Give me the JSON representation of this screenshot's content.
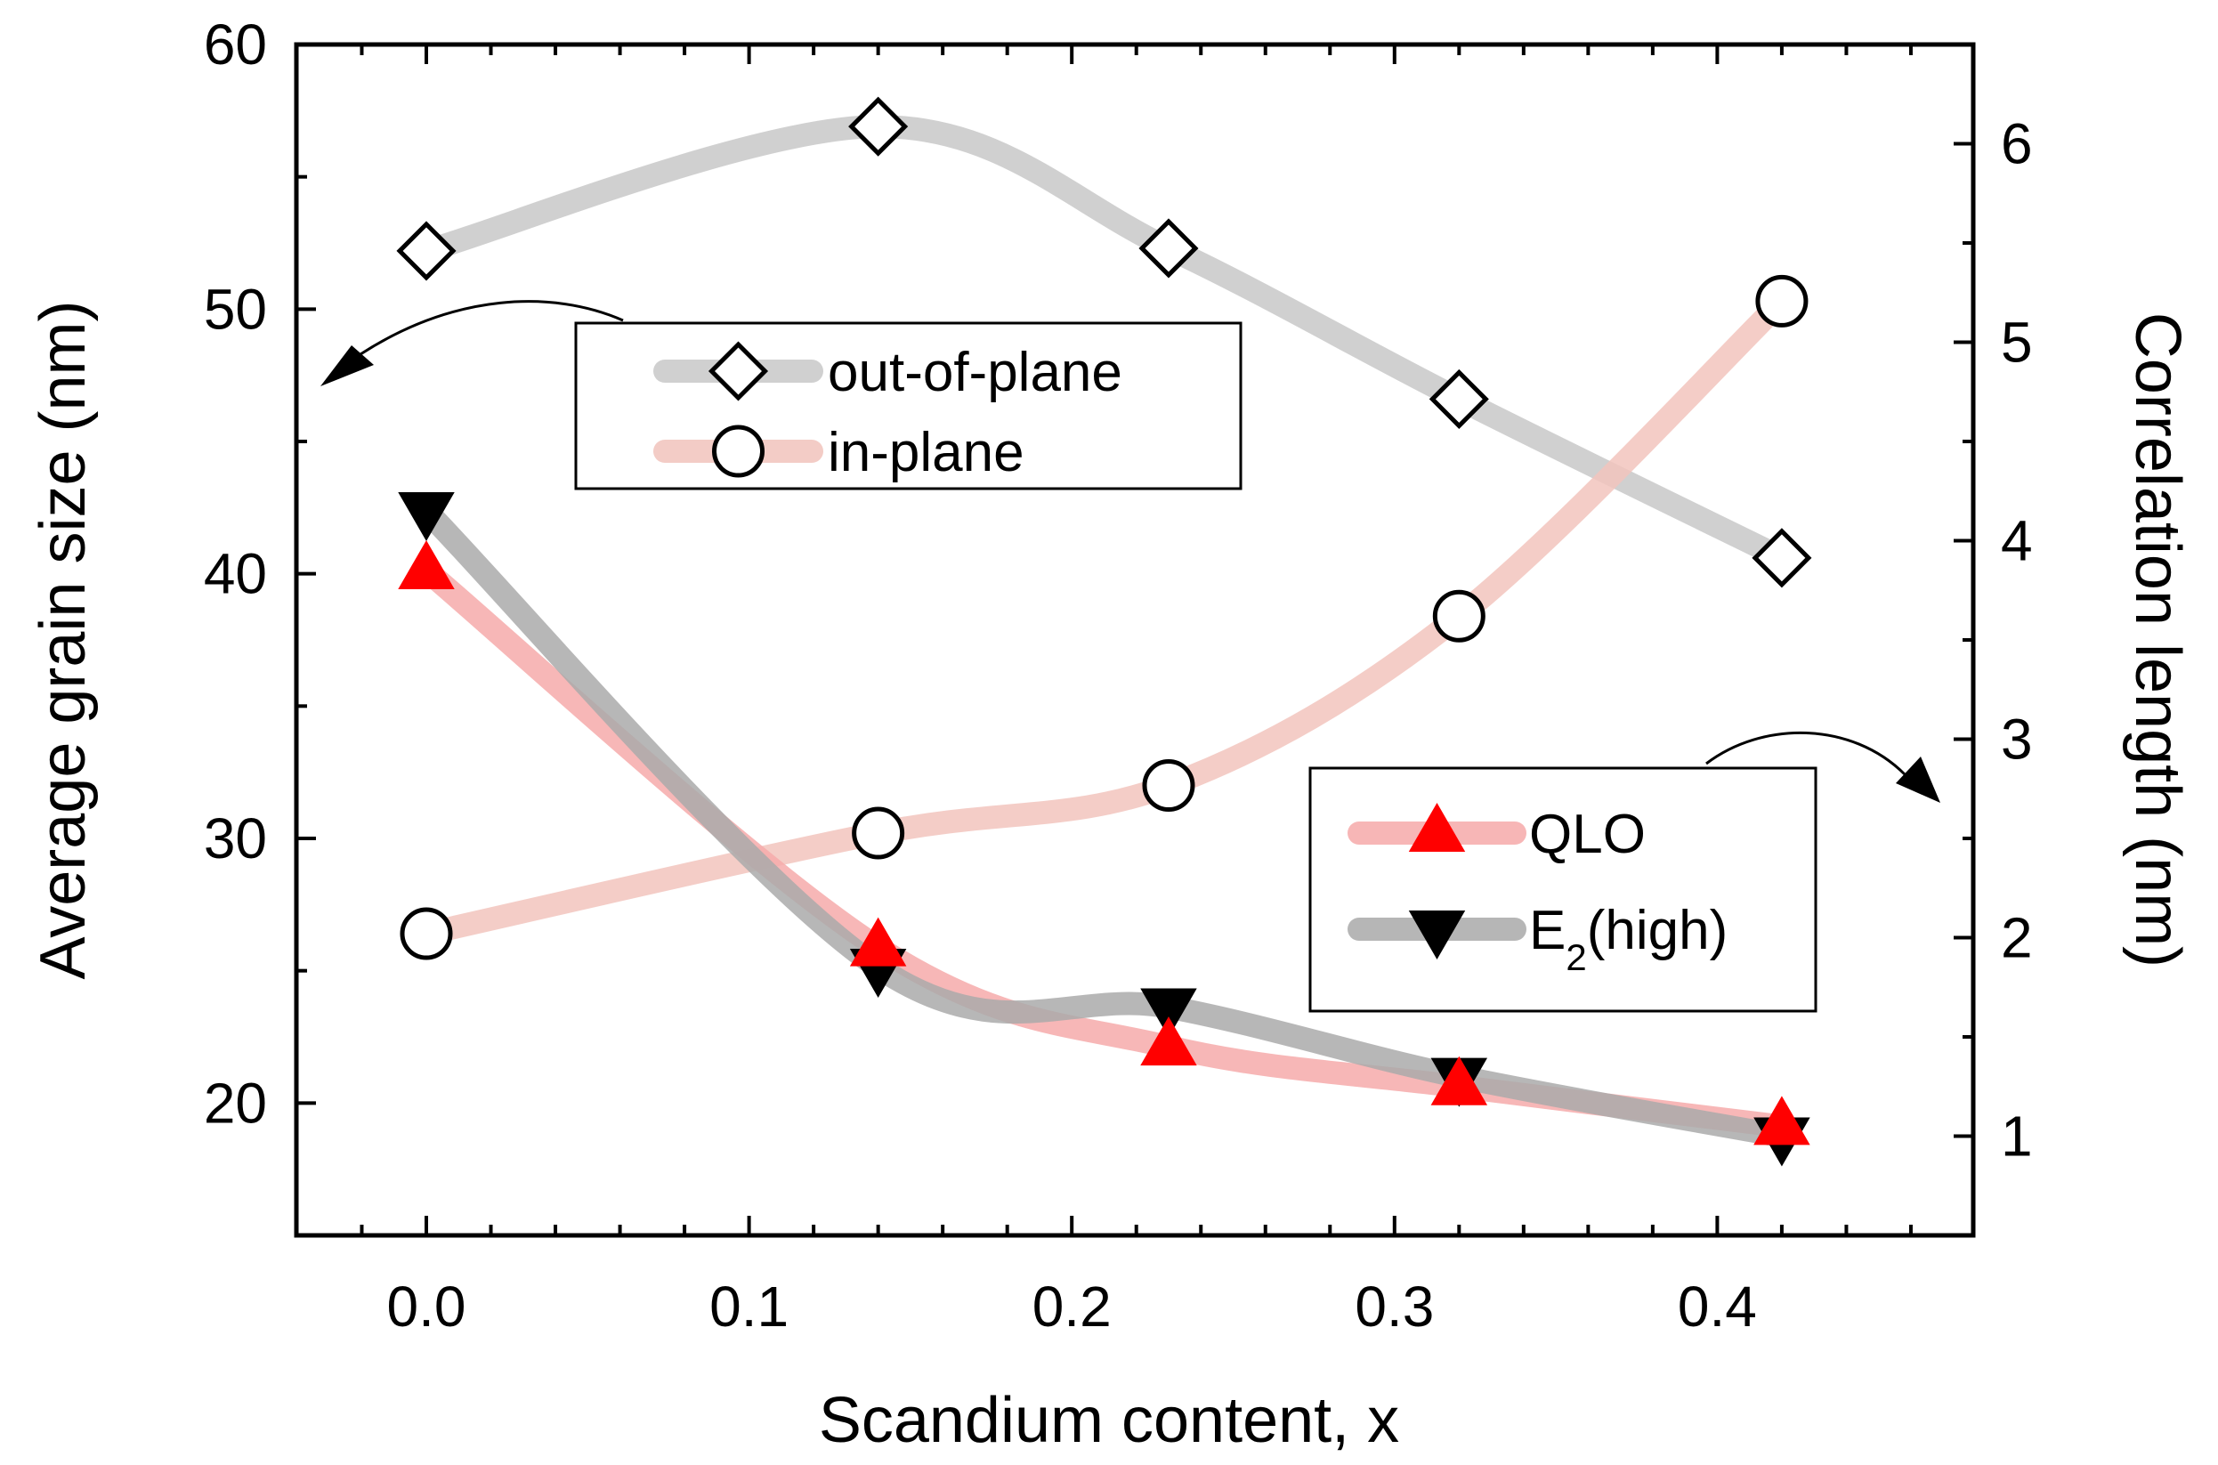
{
  "chart_data": {
    "type": "scatter",
    "xlabel": "Scandium content, x",
    "ylabel_left": "Average grain size (nm)",
    "ylabel_right": "Correlation length (nm)",
    "xlim": [
      -0.04,
      0.48
    ],
    "ylim_left": [
      15,
      60
    ],
    "ylim_right": [
      0.5,
      6.5
    ],
    "x_ticks": [
      "0.0",
      "0.1",
      "0.2",
      "0.3",
      "0.4"
    ],
    "y_left_ticks": [
      "20",
      "30",
      "40",
      "50",
      "60"
    ],
    "y_right_ticks": [
      "1",
      "2",
      "3",
      "4",
      "5",
      "6"
    ],
    "grid": false,
    "x": [
      0.0,
      0.14,
      0.23,
      0.32,
      0.42
    ],
    "series": [
      {
        "name": "out-of-plane",
        "axis": "left",
        "marker": "diamond",
        "line_color": "#c8c8c8",
        "values": [
          52.2,
          56.9,
          52.3,
          46.6,
          40.6
        ]
      },
      {
        "name": "in-plane",
        "axis": "left",
        "marker": "circle",
        "line_color": "#f2c4bd",
        "values": [
          26.4,
          30.2,
          32.0,
          38.4,
          50.3
        ]
      },
      {
        "name": "QLO",
        "axis": "right",
        "marker": "triangle-up",
        "marker_color": "#ff0000",
        "line_color": "#f6aaaa",
        "values": [
          3.85,
          1.95,
          1.45,
          1.25,
          1.05
        ]
      },
      {
        "name": "E",
        "subscript": "2",
        "suffix": "(high)",
        "axis": "right",
        "marker": "triangle-down",
        "marker_color": "#000000",
        "line_color": "#aaaaaa",
        "values": [
          4.15,
          1.85,
          1.65,
          1.3,
          1.0
        ]
      }
    ],
    "legend_top": [
      "out-of-plane",
      "in-plane"
    ],
    "legend_bottom": [
      "QLO",
      "E2(high)"
    ],
    "legend_placement": [
      "top-center",
      "bottom-right"
    ],
    "annotations": [
      "arrow pointing to left axis",
      "arrow pointing to right axis"
    ]
  }
}
